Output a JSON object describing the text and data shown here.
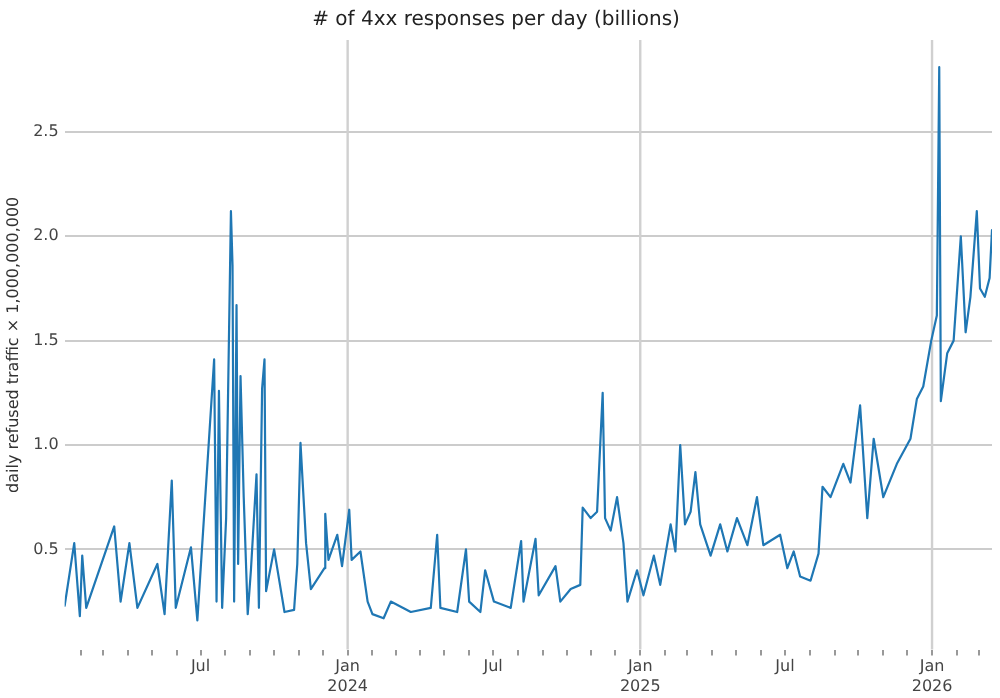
{
  "chart_data": {
    "type": "line",
    "title": "# of 4xx responses per day (billions)",
    "ylabel": "daily refused traffic × 1,000,000,000",
    "x": [
      "2023-01-12",
      "2023-01-24",
      "2023-01-31",
      "2023-02-03",
      "2023-02-08",
      "2023-03-15",
      "2023-03-23",
      "2023-04-03",
      "2023-04-13",
      "2023-05-08",
      "2023-05-17",
      "2023-05-26",
      "2023-05-31",
      "2023-06-19",
      "2023-06-27",
      "2023-07-18",
      "2023-07-21",
      "2023-07-24",
      "2023-07-28",
      "2023-08-02",
      "2023-08-08",
      "2023-08-10",
      "2023-08-12",
      "2023-08-15",
      "2023-08-17",
      "2023-08-20",
      "2023-08-24",
      "2023-08-29",
      "2023-09-02",
      "2023-09-09",
      "2023-09-12",
      "2023-09-16",
      "2023-09-19",
      "2023-09-21",
      "2023-10-01",
      "2023-10-14",
      "2023-10-26",
      "2023-10-30",
      "2023-11-03",
      "2023-11-10",
      "2023-11-16",
      "2023-12-03",
      "2023-12-04",
      "2023-12-08",
      "2023-12-19",
      "2023-12-25",
      "2024-01-03",
      "2024-01-06",
      "2024-01-17",
      "2024-01-26",
      "2024-02-01",
      "2024-02-15",
      "2024-02-24",
      "2024-03-20",
      "2024-04-14",
      "2024-04-22",
      "2024-04-26",
      "2024-05-17",
      "2024-05-28",
      "2024-06-01",
      "2024-06-15",
      "2024-06-21",
      "2024-07-02",
      "2024-07-23",
      "2024-08-05",
      "2024-08-08",
      "2024-08-23",
      "2024-08-27",
      "2024-09-17",
      "2024-09-23",
      "2024-10-06",
      "2024-10-18",
      "2024-10-21",
      "2024-10-31",
      "2024-11-08",
      "2024-11-15",
      "2024-11-18",
      "2024-11-25",
      "2024-12-03",
      "2024-12-11",
      "2024-12-16",
      "2024-12-28",
      "2025-01-05",
      "2025-01-18",
      "2025-01-26",
      "2025-02-08",
      "2025-02-14",
      "2025-02-20",
      "2025-02-26",
      "2025-03-05",
      "2025-03-11",
      "2025-03-17",
      "2025-03-30",
      "2025-04-11",
      "2025-04-20",
      "2025-05-02",
      "2025-05-15",
      "2025-05-27",
      "2025-06-04",
      "2025-06-25",
      "2025-07-04",
      "2025-07-12",
      "2025-07-20",
      "2025-08-02",
      "2025-08-12",
      "2025-08-17",
      "2025-08-27",
      "2025-09-12",
      "2025-09-21",
      "2025-10-03",
      "2025-10-12",
      "2025-10-20",
      "2025-11-01",
      "2025-11-18",
      "2025-12-05",
      "2025-12-13",
      "2025-12-21",
      "2025-12-31",
      "2026-01-07",
      "2026-01-10",
      "2026-01-12",
      "2026-01-20",
      "2026-01-28",
      "2026-02-06",
      "2026-02-12",
      "2026-02-18",
      "2026-02-26",
      "2026-03-02",
      "2026-03-08",
      "2026-03-14",
      "2026-03-17"
    ],
    "series": [
      {
        "color": "#1f77b4",
        "values": [
          0.23,
          0.53,
          0.18,
          0.47,
          0.22,
          0.61,
          0.25,
          0.53,
          0.22,
          0.43,
          0.19,
          0.83,
          0.22,
          0.51,
          0.16,
          1.41,
          0.25,
          1.26,
          0.22,
          0.65,
          2.12,
          1.86,
          0.25,
          1.67,
          0.43,
          1.33,
          0.75,
          0.19,
          0.4,
          0.86,
          0.22,
          1.27,
          1.41,
          0.3,
          0.5,
          0.2,
          0.21,
          0.43,
          1.01,
          0.53,
          0.31,
          0.41,
          0.67,
          0.45,
          0.57,
          0.42,
          0.69,
          0.45,
          0.49,
          0.25,
          0.19,
          0.17,
          0.25,
          0.2,
          0.22,
          0.57,
          0.22,
          0.2,
          0.5,
          0.25,
          0.2,
          0.4,
          0.25,
          0.22,
          0.54,
          0.25,
          0.55,
          0.28,
          0.42,
          0.25,
          0.31,
          0.33,
          0.7,
          0.65,
          0.68,
          1.25,
          0.65,
          0.59,
          0.75,
          0.53,
          0.25,
          0.4,
          0.28,
          0.47,
          0.33,
          0.62,
          0.49,
          1.0,
          0.62,
          0.68,
          0.87,
          0.62,
          0.47,
          0.62,
          0.49,
          0.65,
          0.52,
          0.75,
          0.52,
          0.57,
          0.41,
          0.49,
          0.37,
          0.35,
          0.48,
          0.8,
          0.75,
          0.91,
          0.82,
          1.19,
          0.65,
          1.03,
          0.75,
          0.91,
          1.03,
          1.22,
          1.28,
          1.5,
          1.62,
          2.81,
          1.21,
          1.44,
          1.5,
          2.0,
          1.54,
          1.71,
          2.12,
          1.75,
          1.71,
          1.8,
          2.03
        ]
      }
    ],
    "xlim": [
      "2023-01-12",
      "2026-03-17"
    ],
    "xticks": [
      {
        "value": "2023-02-01",
        "label": null
      },
      {
        "value": "2023-03-01",
        "label": null
      },
      {
        "value": "2023-04-01",
        "label": null
      },
      {
        "value": "2023-05-01",
        "label": null
      },
      {
        "value": "2023-06-01",
        "label": null
      },
      {
        "value": "2023-07-01",
        "label": "Jul"
      },
      {
        "value": "2023-08-01",
        "label": null
      },
      {
        "value": "2023-09-01",
        "label": null
      },
      {
        "value": "2023-10-01",
        "label": null
      },
      {
        "value": "2023-11-01",
        "label": null
      },
      {
        "value": "2023-12-01",
        "label": null
      },
      {
        "value": "2024-01-01",
        "label": "Jan\n2024"
      },
      {
        "value": "2024-02-01",
        "label": null
      },
      {
        "value": "2024-03-01",
        "label": null
      },
      {
        "value": "2024-04-01",
        "label": null
      },
      {
        "value": "2024-05-01",
        "label": null
      },
      {
        "value": "2024-06-01",
        "label": null
      },
      {
        "value": "2024-07-01",
        "label": "Jul"
      },
      {
        "value": "2024-08-01",
        "label": null
      },
      {
        "value": "2024-09-01",
        "label": null
      },
      {
        "value": "2024-10-01",
        "label": null
      },
      {
        "value": "2024-11-01",
        "label": null
      },
      {
        "value": "2024-12-01",
        "label": null
      },
      {
        "value": "2025-01-01",
        "label": "Jan\n2025"
      },
      {
        "value": "2025-02-01",
        "label": null
      },
      {
        "value": "2025-03-01",
        "label": null
      },
      {
        "value": "2025-04-01",
        "label": null
      },
      {
        "value": "2025-05-01",
        "label": null
      },
      {
        "value": "2025-06-01",
        "label": null
      },
      {
        "value": "2025-07-01",
        "label": "Jul"
      },
      {
        "value": "2025-08-01",
        "label": null
      },
      {
        "value": "2025-09-01",
        "label": null
      },
      {
        "value": "2025-10-01",
        "label": null
      },
      {
        "value": "2025-11-01",
        "label": null
      },
      {
        "value": "2025-12-01",
        "label": null
      },
      {
        "value": "2026-01-01",
        "label": "Jan\n2026"
      },
      {
        "value": "2026-02-01",
        "label": null
      },
      {
        "value": "2026-03-01",
        "label": null
      }
    ],
    "ylim": [
      0.02,
      2.94
    ],
    "yticks": [
      0.5,
      {
        "value": 1,
        "label": "1.0"
      },
      1.5,
      {
        "value": 2,
        "label": "2.0"
      },
      2.5
    ],
    "grid": "y",
    "ref_lines": [
      {
        "axis": "x",
        "value": "2024-01-01",
        "color": "#d0d0d0"
      },
      {
        "axis": "x",
        "value": "2025-01-01",
        "color": "#d0d0d0"
      },
      {
        "axis": "x",
        "value": "2026-01-01",
        "color": "#d0d0d0"
      }
    ],
    "line_style": "solid"
  }
}
